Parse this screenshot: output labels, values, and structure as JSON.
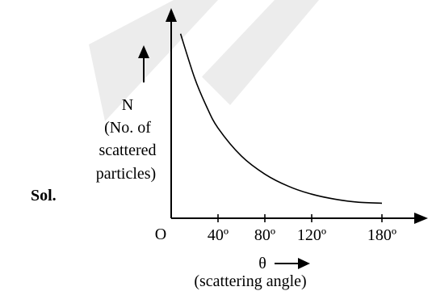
{
  "solution_label": "Sol.",
  "chart_data": {
    "type": "line",
    "title": "",
    "ylabel": {
      "symbol": "N",
      "lines": [
        "(No. of",
        "scattered",
        "particles)"
      ]
    },
    "xlabel": {
      "symbol": "θ",
      "description": "(scattering angle)"
    },
    "origin_label": "O",
    "x_ticks": [
      40,
      80,
      120,
      180
    ],
    "x_tick_labels": [
      "40º",
      "80º",
      "120º",
      "180º"
    ],
    "xlim": [
      0,
      200
    ],
    "ylim": [
      0,
      1
    ],
    "grid": false,
    "series": [
      {
        "x": [
          8,
          20,
          30,
          40,
          60,
          80,
          100,
          120,
          140,
          160,
          180
        ],
        "y": [
          0.92,
          0.7,
          0.56,
          0.45,
          0.31,
          0.22,
          0.16,
          0.12,
          0.095,
          0.08,
          0.075
        ]
      }
    ]
  },
  "colors": {
    "ink": "#000000",
    "watermark": "#ececec"
  }
}
